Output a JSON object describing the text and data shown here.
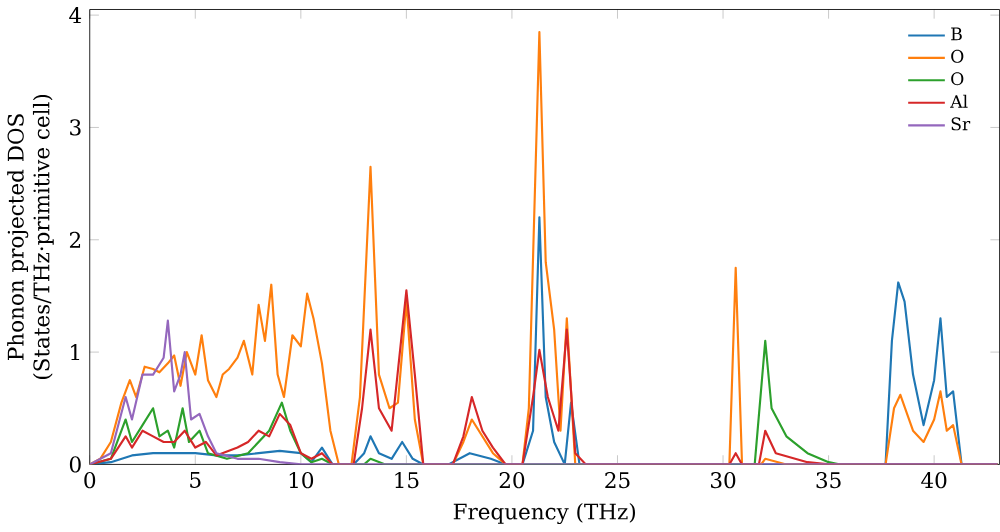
{
  "chart_data": {
    "type": "line",
    "xlabel": "Frequency (THz)",
    "ylabel": "Phonon projected DOS\n(States/THz·primitive cell)",
    "xlim": [
      0,
      43.1
    ],
    "ylim": [
      0,
      4.05
    ],
    "xticks": [
      0,
      5,
      10,
      15,
      20,
      25,
      30,
      35,
      40
    ],
    "yticks": [
      0,
      1,
      2,
      3,
      4
    ],
    "grid": false,
    "legend": "top right",
    "marker": "none",
    "line_style": "solid",
    "series": [
      {
        "name": "B",
        "color": "#1f77b4",
        "x": [
          0,
          1,
          2,
          3,
          4,
          5,
          6,
          7,
          8,
          9,
          10,
          10.5,
          11,
          11.5,
          12.5,
          13,
          13.3,
          13.7,
          14.3,
          14.8,
          15.3,
          15.8,
          17,
          18,
          19,
          19.7,
          20.5,
          21,
          21.3,
          21.6,
          22,
          22.5,
          22.8,
          23.2,
          37.7,
          38,
          38.3,
          38.6,
          39,
          39.5,
          40,
          40.3,
          40.6,
          40.9,
          41.3,
          43
        ],
        "values": [
          0,
          0.02,
          0.08,
          0.1,
          0.1,
          0.1,
          0.08,
          0.08,
          0.1,
          0.12,
          0.1,
          0.02,
          0.15,
          0,
          0,
          0.1,
          0.25,
          0.1,
          0.05,
          0.2,
          0.05,
          0,
          0,
          0.1,
          0.05,
          0,
          0,
          0.3,
          2.2,
          0.6,
          0.2,
          0,
          0.55,
          0,
          0,
          1.1,
          1.62,
          1.45,
          0.8,
          0.35,
          0.75,
          1.3,
          0.6,
          0.65,
          0,
          0
        ]
      },
      {
        "name": "O",
        "color": "#ff7f0e",
        "x": [
          0,
          0.5,
          1,
          1.5,
          1.9,
          2.2,
          2.6,
          3,
          3.3,
          3.7,
          4,
          4.3,
          4.6,
          5,
          5.3,
          5.6,
          6,
          6.3,
          6.6,
          7,
          7.3,
          7.7,
          8,
          8.3,
          8.6,
          8.9,
          9.2,
          9.6,
          10,
          10.3,
          10.6,
          11,
          11.4,
          11.8,
          12.4,
          12.8,
          13.3,
          13.7,
          14.2,
          14.6,
          15,
          15.4,
          15.8,
          17.2,
          17.7,
          18.1,
          18.6,
          19.1,
          19.7,
          20.5,
          20.8,
          21.3,
          21.6,
          22,
          22.3,
          22.6,
          23,
          24,
          30.3,
          30.6,
          30.9,
          31.8,
          32,
          33,
          37.7,
          38.1,
          38.4,
          39,
          39.5,
          40,
          40.3,
          40.6,
          40.9,
          41.3,
          43
        ],
        "values": [
          0,
          0.05,
          0.2,
          0.55,
          0.75,
          0.6,
          0.87,
          0.85,
          0.82,
          0.9,
          0.97,
          0.7,
          1.0,
          0.8,
          1.15,
          0.75,
          0.6,
          0.8,
          0.85,
          0.95,
          1.1,
          0.8,
          1.42,
          1.1,
          1.6,
          0.8,
          0.6,
          1.15,
          1.05,
          1.52,
          1.3,
          0.9,
          0.3,
          0,
          0,
          0.6,
          2.65,
          0.8,
          0.5,
          0.55,
          1.45,
          0.4,
          0,
          0,
          0.2,
          0.4,
          0.25,
          0.1,
          0,
          0,
          0.5,
          3.85,
          1.8,
          1.2,
          0.3,
          1.3,
          0,
          0,
          0,
          1.75,
          0,
          0,
          0.05,
          0,
          0,
          0.5,
          0.62,
          0.3,
          0.2,
          0.4,
          0.65,
          0.3,
          0.35,
          0,
          0
        ]
      },
      {
        "name": "O",
        "color": "#2ca02c",
        "x": [
          0,
          1,
          1.7,
          2,
          2.5,
          3,
          3.3,
          3.7,
          4,
          4.4,
          4.7,
          5.2,
          5.6,
          6.5,
          7.5,
          8.5,
          9.1,
          9.5,
          10,
          10.5,
          11,
          11.5,
          13,
          13.3,
          14,
          31.5,
          32,
          32.3,
          33,
          34,
          35,
          35.5,
          43
        ],
        "values": [
          0,
          0.05,
          0.4,
          0.2,
          0.35,
          0.5,
          0.25,
          0.3,
          0.15,
          0.5,
          0.2,
          0.3,
          0.1,
          0.05,
          0.1,
          0.3,
          0.55,
          0.3,
          0.1,
          0.02,
          0.05,
          0,
          0,
          0.05,
          0,
          0,
          1.1,
          0.5,
          0.25,
          0.1,
          0.02,
          0,
          0
        ]
      },
      {
        "name": "Al",
        "color": "#d62728",
        "x": [
          0,
          1,
          1.7,
          2,
          2.5,
          3,
          3.5,
          4,
          4.5,
          5,
          5.5,
          6,
          7,
          7.5,
          8,
          8.5,
          9,
          9.5,
          10,
          10.5,
          11,
          11.5,
          12.5,
          12.9,
          13.3,
          13.7,
          14.3,
          15,
          15.4,
          15.8,
          17.2,
          17.7,
          18.1,
          18.6,
          19.1,
          19.7,
          20.5,
          21,
          21.3,
          21.7,
          22.2,
          22.6,
          23,
          23.5,
          30.3,
          30.6,
          30.9,
          31.7,
          32,
          32.5,
          34,
          35,
          43
        ],
        "values": [
          0,
          0.05,
          0.25,
          0.15,
          0.3,
          0.25,
          0.2,
          0.2,
          0.3,
          0.15,
          0.2,
          0.08,
          0.15,
          0.2,
          0.3,
          0.25,
          0.45,
          0.35,
          0.1,
          0.05,
          0.1,
          0,
          0,
          0.5,
          1.2,
          0.5,
          0.3,
          1.55,
          0.8,
          0,
          0,
          0.25,
          0.6,
          0.3,
          0.15,
          0,
          0,
          0.6,
          1.02,
          0.6,
          0.3,
          1.2,
          0.1,
          0,
          0,
          0.1,
          0,
          0,
          0.3,
          0.1,
          0.02,
          0,
          0
        ]
      },
      {
        "name": "Sr",
        "color": "#9467bd",
        "x": [
          0,
          1,
          1.7,
          2,
          2.5,
          3,
          3.5,
          3.7,
          4,
          4.3,
          4.5,
          4.8,
          5.2,
          5.6,
          6,
          7,
          8,
          9,
          10,
          43
        ],
        "values": [
          0,
          0.1,
          0.6,
          0.4,
          0.8,
          0.8,
          0.95,
          1.28,
          0.65,
          0.8,
          1.0,
          0.4,
          0.45,
          0.25,
          0.1,
          0.05,
          0.05,
          0.02,
          0,
          0
        ]
      }
    ]
  }
}
